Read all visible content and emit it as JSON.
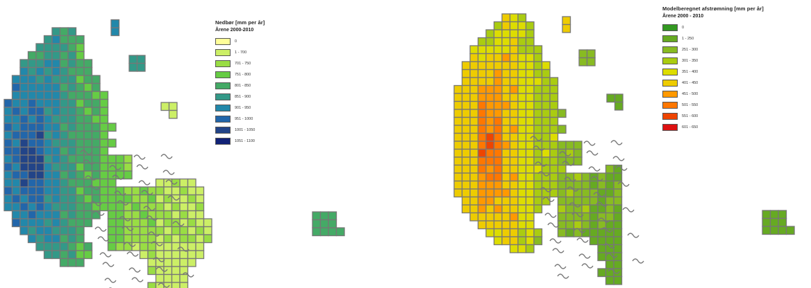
{
  "maps": [
    {
      "legend": {
        "title": "Nedbør [mm per år]",
        "subtitle": "Årene 2000-2010",
        "classes": [
          {
            "label": "0",
            "color": "#ffff99"
          },
          {
            "label": "1 - 700",
            "color": "#ccef66"
          },
          {
            "label": "701 - 750",
            "color": "#99dd44"
          },
          {
            "label": "751 - 800",
            "color": "#66cc44"
          },
          {
            "label": "801 - 850",
            "color": "#44aa66"
          },
          {
            "label": "851 - 900",
            "color": "#339988"
          },
          {
            "label": "901 - 950",
            "color": "#2288aa"
          },
          {
            "label": "951 - 1000",
            "color": "#2266aa"
          },
          {
            "label": "1001 - 1050",
            "color": "#224488"
          },
          {
            "label": "1051 - 1100",
            "color": "#112277"
          }
        ]
      }
    },
    {
      "legend": {
        "title": "Modelberegnet afstrømning [mm per år]",
        "subtitle": "Årene 2000 - 2010",
        "classes": [
          {
            "label": "0",
            "color": "#339922"
          },
          {
            "label": "1 - 250",
            "color": "#66aa22"
          },
          {
            "label": "251 - 300",
            "color": "#88bb22"
          },
          {
            "label": "301 - 350",
            "color": "#aacc11"
          },
          {
            "label": "351 - 400",
            "color": "#dddd00"
          },
          {
            "label": "401 - 450",
            "color": "#eecc00"
          },
          {
            "label": "451 - 500",
            "color": "#ff9900"
          },
          {
            "label": "501 - 550",
            "color": "#ff7700"
          },
          {
            "label": "551 - 600",
            "color": "#ee4400"
          },
          {
            "label": "601 - 650",
            "color": "#dd1111"
          }
        ]
      }
    }
  ],
  "grid_outline_color": "#777777"
}
